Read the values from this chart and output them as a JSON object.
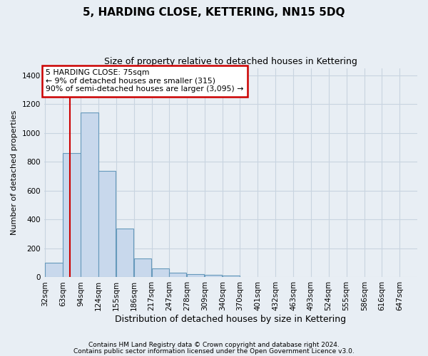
{
  "title": "5, HARDING CLOSE, KETTERING, NN15 5DQ",
  "subtitle": "Size of property relative to detached houses in Kettering",
  "xlabel": "Distribution of detached houses by size in Kettering",
  "ylabel": "Number of detached properties",
  "footnote1": "Contains HM Land Registry data © Crown copyright and database right 2024.",
  "footnote2": "Contains public sector information licensed under the Open Government Licence v3.0.",
  "bins": [
    32,
    63,
    94,
    124,
    155,
    186,
    217,
    247,
    278,
    309,
    340,
    370,
    401,
    432,
    463,
    493,
    524,
    555,
    586,
    616,
    647
  ],
  "bar_heights": [
    100,
    860,
    1140,
    735,
    340,
    130,
    60,
    30,
    20,
    15,
    10,
    0,
    0,
    0,
    0,
    0,
    0,
    0,
    0,
    0
  ],
  "bar_color": "#c8d8ec",
  "bar_edge_color": "#6699bb",
  "property_line_x": 75,
  "property_line_color": "#cc0000",
  "annotation_text": "5 HARDING CLOSE: 75sqm\n← 9% of detached houses are smaller (315)\n90% of semi-detached houses are larger (3,095) →",
  "annotation_box_color": "#ffffff",
  "annotation_box_edge_color": "#cc0000",
  "ylim": [
    0,
    1450
  ],
  "yticks": [
    0,
    200,
    400,
    600,
    800,
    1000,
    1200,
    1400
  ],
  "background_color": "#e8eef4",
  "axes_background_color": "#e8eef4",
  "grid_color": "#c8d4e0",
  "tick_labels": [
    "32sqm",
    "63sqm",
    "94sqm",
    "124sqm",
    "155sqm",
    "186sqm",
    "217sqm",
    "247sqm",
    "278sqm",
    "309sqm",
    "340sqm",
    "370sqm",
    "401sqm",
    "432sqm",
    "463sqm",
    "493sqm",
    "524sqm",
    "555sqm",
    "586sqm",
    "616sqm",
    "647sqm"
  ],
  "title_fontsize": 11,
  "subtitle_fontsize": 9,
  "ylabel_fontsize": 8,
  "xlabel_fontsize": 9,
  "tick_fontsize": 7.5,
  "footnote_fontsize": 6.5
}
